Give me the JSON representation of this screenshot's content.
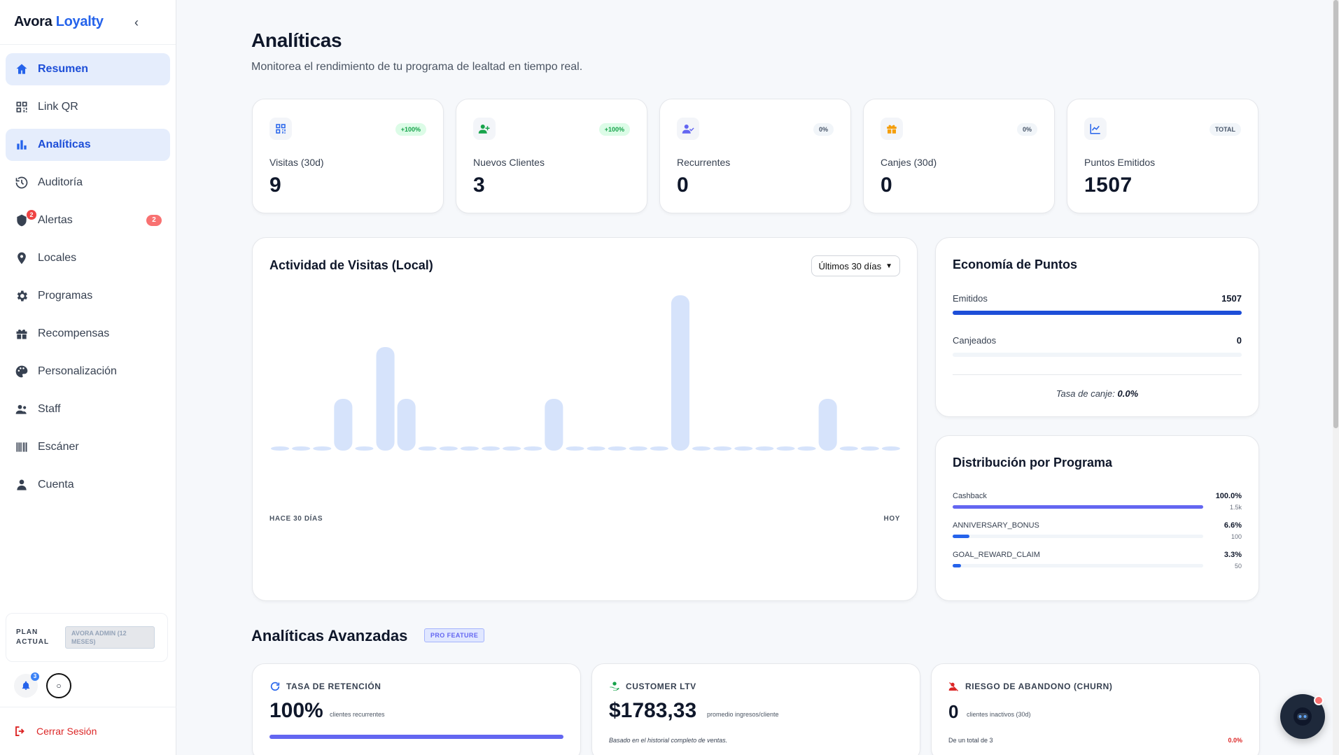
{
  "brand": {
    "name": "Avora",
    "accent": "Loyalty"
  },
  "sidebar": {
    "items": [
      {
        "label": "Resumen",
        "icon": "home-icon"
      },
      {
        "label": "Link QR",
        "icon": "qr-icon"
      },
      {
        "label": "Analíticas",
        "icon": "chart-bar-icon"
      },
      {
        "label": "Auditoría",
        "icon": "history-icon"
      },
      {
        "label": "Alertas",
        "icon": "alert-icon",
        "badge": "2",
        "icon_badge": "2"
      },
      {
        "label": "Locales",
        "icon": "map-pin-icon"
      },
      {
        "label": "Programas",
        "icon": "gear-icon"
      },
      {
        "label": "Recompensas",
        "icon": "gift-icon"
      },
      {
        "label": "Personalización",
        "icon": "palette-icon"
      },
      {
        "label": "Staff",
        "icon": "users-icon"
      },
      {
        "label": "Escáner",
        "icon": "barcode-icon"
      },
      {
        "label": "Cuenta",
        "icon": "user-icon"
      }
    ],
    "plan_label": "PLAN ACTUAL",
    "plan_value": "AVORA ADMIN (12 MESES)",
    "bell_count": "3",
    "logout_label": "Cerrar Sesión"
  },
  "header": {
    "title": "Analíticas",
    "subtitle": "Monitorea el rendimiento de tu programa de lealtad en tiempo real."
  },
  "stats": [
    {
      "label": "Visitas (30d)",
      "value": "9",
      "pill": "+100%",
      "icon": "qr-icon",
      "color": "#2563eb"
    },
    {
      "label": "Nuevos Clientes",
      "value": "3",
      "pill": "+100%",
      "icon": "user-plus-icon",
      "color": "#16a34a"
    },
    {
      "label": "Recurrentes",
      "value": "0",
      "pill": "0%",
      "icon": "user-check-icon",
      "color": "#6366f1"
    },
    {
      "label": "Canjes (30d)",
      "value": "0",
      "pill": "0%",
      "icon": "gift-icon",
      "color": "#f59e0b"
    },
    {
      "label": "Puntos Emitidos",
      "value": "1507",
      "pill": "TOTAL",
      "icon": "trend-icon",
      "color": "#2563eb"
    }
  ],
  "activity": {
    "title": "Actividad de Visitas (Local)",
    "range_select": "Últimos 30 días",
    "start_label": "HACE 30 DÍAS",
    "end_label": "HOY"
  },
  "chart_data": {
    "type": "bar",
    "values": [
      0,
      0,
      0,
      1,
      0,
      2,
      1,
      0,
      0,
      0,
      0,
      0,
      0,
      1,
      0,
      0,
      0,
      0,
      0,
      3,
      0,
      0,
      0,
      0,
      0,
      0,
      1,
      0,
      0,
      0
    ],
    "xlabel_start": "HACE 30 DÍAS",
    "xlabel_end": "HOY",
    "bar_color": "#d6e3fb",
    "ylim": [
      0,
      3
    ]
  },
  "economy": {
    "title": "Economía de Puntos",
    "issued_label": "Emitidos",
    "issued_value": "1507",
    "issued_fraction": 1.0,
    "redeemed_label": "Canjeados",
    "redeemed_value": "0",
    "redeemed_fraction": 0.0,
    "rate_label": "Tasa de canje:",
    "rate_value": "0.0%"
  },
  "distribution": {
    "title": "Distribución por Programa",
    "rows": [
      {
        "label": "Cashback",
        "pct": "100.0%",
        "count": "1.5k",
        "fraction": 1.0,
        "color": "#6366f1"
      },
      {
        "label": "ANNIVERSARY_BONUS",
        "pct": "6.6%",
        "count": "100",
        "fraction": 0.066,
        "color": "#2563eb"
      },
      {
        "label": "GOAL_REWARD_CLAIM",
        "pct": "3.3%",
        "count": "50",
        "fraction": 0.033,
        "color": "#2563eb"
      }
    ]
  },
  "advanced": {
    "title": "Analíticas Avanzadas",
    "badge": "PRO FEATURE",
    "cards": [
      {
        "label": "TASA DE RETENCIÓN",
        "value": "100%",
        "caption": "clientes recurrentes",
        "fraction": 1.0
      },
      {
        "label": "CUSTOMER LTV",
        "value": "$1783,33",
        "caption": "promedio ingresos/cliente",
        "note": "Basado en el historial completo de ventas."
      },
      {
        "label": "RIESGO DE ABANDONO (CHURN)",
        "value": "0",
        "caption": "clientes inactivos (30d)",
        "note": "De un total de 3",
        "pct": "0.0%"
      }
    ]
  }
}
